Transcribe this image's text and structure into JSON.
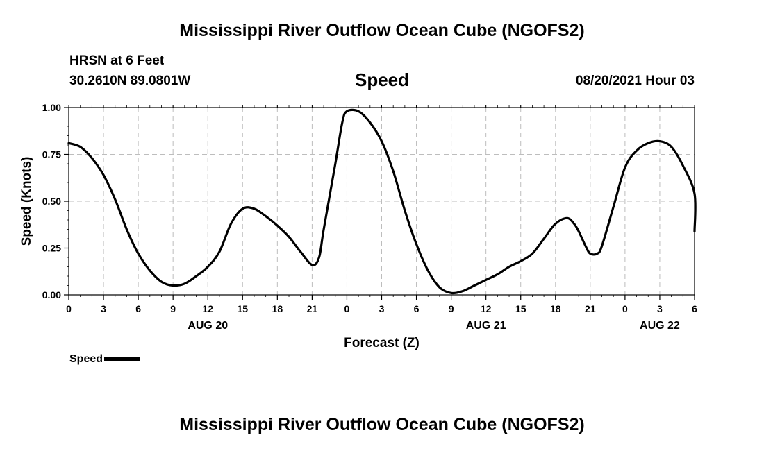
{
  "header": {
    "title": "Mississippi River Outflow Ocean Cube (NGOFS2)",
    "station": "HRSN at 6 Feet",
    "coords": "30.2610N  89.0801W",
    "chart_title": "Speed",
    "datetime": "08/20/2021 Hour 03"
  },
  "footer": {
    "title": "Mississippi River Outflow Ocean Cube (NGOFS2)"
  },
  "legend": {
    "label": "Speed"
  },
  "chart_data": {
    "type": "line",
    "title": "Speed",
    "xlabel": "Forecast (Z)",
    "ylabel": "Speed (Knots)",
    "xlim": [
      0,
      54
    ],
    "ylim": [
      0,
      1.0
    ],
    "y_ticks": [
      0,
      0.25,
      0.5,
      0.75,
      1.0
    ],
    "y_tick_labels": [
      "0.00",
      "0.25",
      "0.50",
      "0.75",
      "1.00"
    ],
    "x_ticks": [
      0,
      3,
      6,
      9,
      12,
      15,
      18,
      21,
      24,
      27,
      30,
      33,
      36,
      39,
      42,
      45,
      48,
      51,
      54
    ],
    "x_tick_labels": [
      "0",
      "3",
      "6",
      "9",
      "12",
      "15",
      "18",
      "21",
      "0",
      "3",
      "6",
      "9",
      "12",
      "15",
      "18",
      "21",
      "0",
      "3",
      "6"
    ],
    "date_labels": [
      {
        "x": 12,
        "label": "AUG 20"
      },
      {
        "x": 36,
        "label": "AUG 21"
      },
      {
        "x": 51,
        "label": "AUG 22"
      }
    ],
    "grid": true,
    "legend_position": "bottom-left",
    "series": [
      {
        "name": "Speed",
        "color": "#000000",
        "points": [
          [
            0,
            0.81
          ],
          [
            1,
            0.79
          ],
          [
            2,
            0.73
          ],
          [
            3,
            0.64
          ],
          [
            4,
            0.51
          ],
          [
            5,
            0.35
          ],
          [
            6,
            0.22
          ],
          [
            7,
            0.13
          ],
          [
            8,
            0.07
          ],
          [
            9,
            0.05
          ],
          [
            10,
            0.06
          ],
          [
            11,
            0.1
          ],
          [
            12,
            0.15
          ],
          [
            13,
            0.23
          ],
          [
            14,
            0.38
          ],
          [
            15,
            0.46
          ],
          [
            16,
            0.46
          ],
          [
            17,
            0.42
          ],
          [
            18,
            0.37
          ],
          [
            19,
            0.31
          ],
          [
            20,
            0.23
          ],
          [
            21,
            0.16
          ],
          [
            21.6,
            0.2
          ],
          [
            22,
            0.35
          ],
          [
            23,
            0.7
          ],
          [
            23.6,
            0.92
          ],
          [
            24,
            0.98
          ],
          [
            25,
            0.98
          ],
          [
            26,
            0.92
          ],
          [
            27,
            0.82
          ],
          [
            28,
            0.66
          ],
          [
            29,
            0.45
          ],
          [
            30,
            0.27
          ],
          [
            31,
            0.13
          ],
          [
            32,
            0.04
          ],
          [
            33,
            0.01
          ],
          [
            34,
            0.02
          ],
          [
            35,
            0.05
          ],
          [
            36,
            0.08
          ],
          [
            37,
            0.11
          ],
          [
            38,
            0.15
          ],
          [
            39,
            0.18
          ],
          [
            40,
            0.22
          ],
          [
            41,
            0.3
          ],
          [
            42,
            0.38
          ],
          [
            43,
            0.41
          ],
          [
            43.6,
            0.38
          ],
          [
            44,
            0.34
          ],
          [
            44.6,
            0.26
          ],
          [
            45,
            0.22
          ],
          [
            45.6,
            0.22
          ],
          [
            46,
            0.26
          ],
          [
            47,
            0.47
          ],
          [
            48,
            0.68
          ],
          [
            49,
            0.77
          ],
          [
            50,
            0.81
          ],
          [
            51,
            0.82
          ],
          [
            52,
            0.79
          ],
          [
            53,
            0.69
          ],
          [
            54,
            0.54
          ],
          [
            54,
            0.34
          ]
        ]
      }
    ]
  }
}
